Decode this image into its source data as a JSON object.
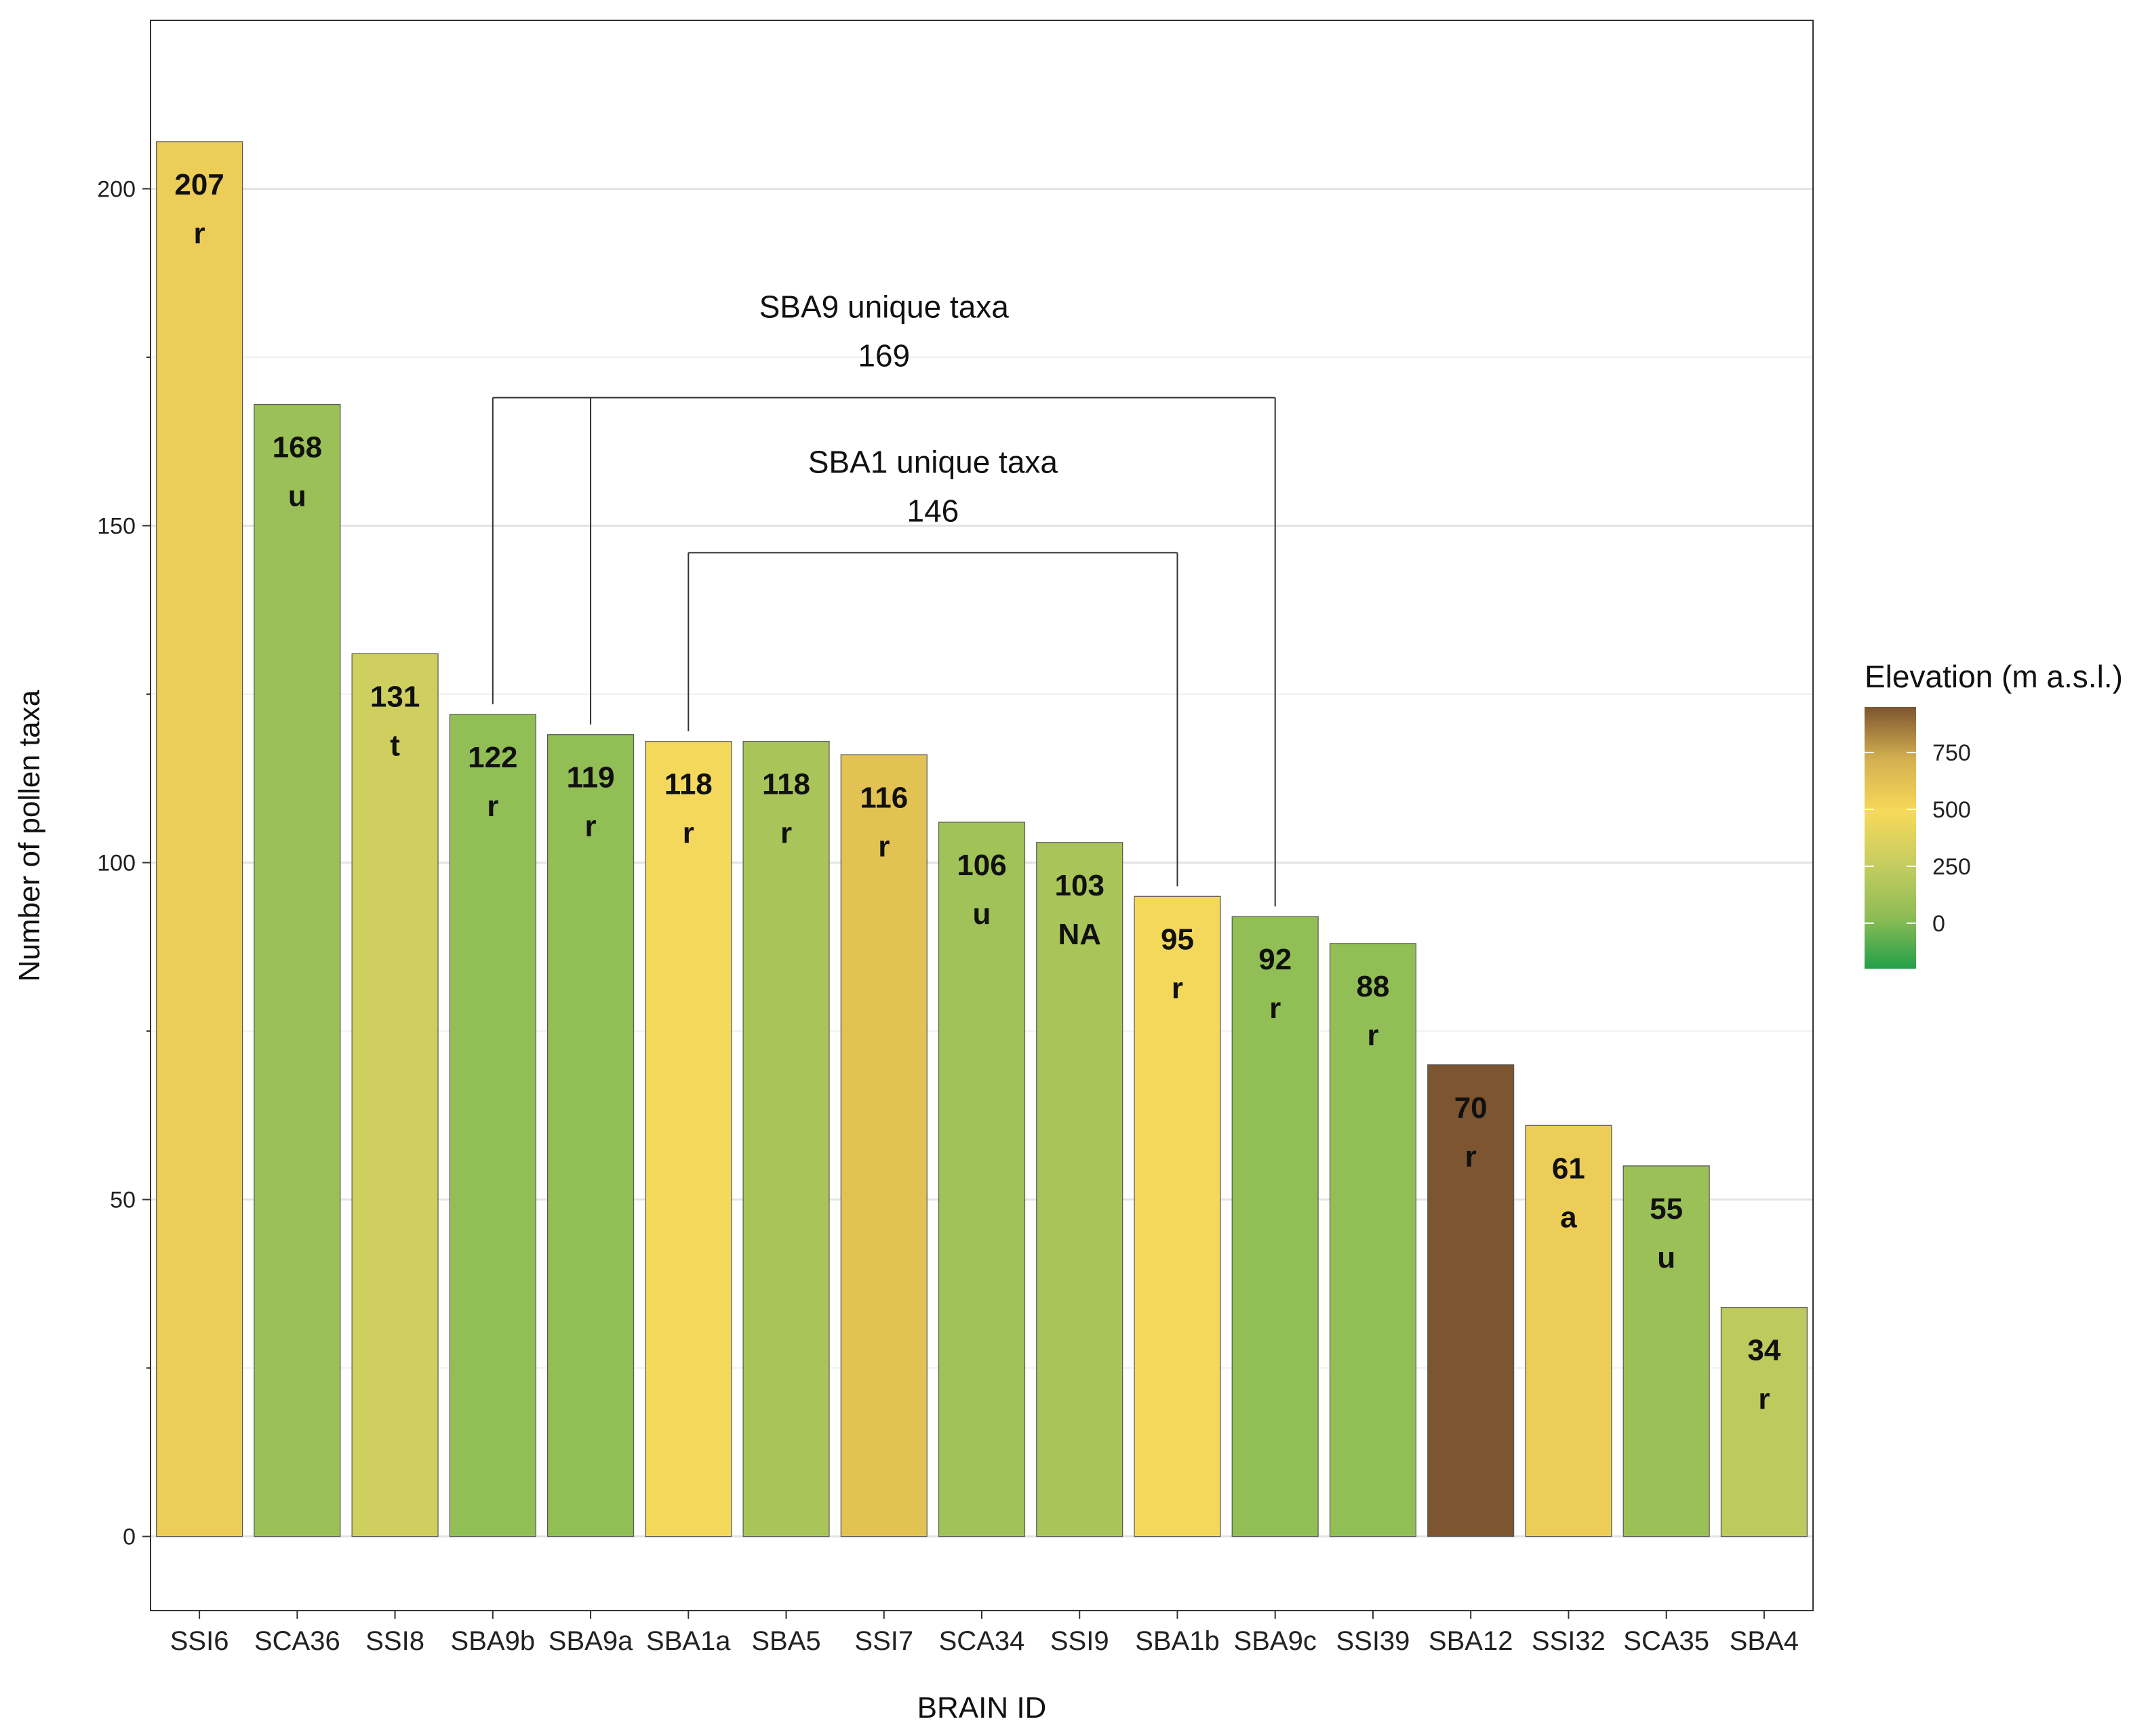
{
  "chart_data": {
    "type": "bar",
    "xlabel": "BRAIN ID",
    "ylabel": "Number of pollen taxa",
    "ylim": [
      -11,
      225
    ],
    "yticks": [
      0,
      50,
      100,
      150,
      200
    ],
    "categories": [
      "SSI6",
      "SCA36",
      "SSI8",
      "SBA9b",
      "SBA9a",
      "SBA1a",
      "SBA5",
      "SSI7",
      "SCA34",
      "SSI9",
      "SBA1b",
      "SBA9c",
      "SSI39",
      "SBA12",
      "SSI32",
      "SCA35",
      "SBA4"
    ],
    "values": [
      207,
      168,
      131,
      122,
      119,
      118,
      118,
      116,
      106,
      103,
      95,
      92,
      88,
      70,
      61,
      55,
      34
    ],
    "codes": [
      "r",
      "u",
      "t",
      "r",
      "r",
      "r",
      "r",
      "r",
      "u",
      "NA",
      "r",
      "r",
      "r",
      "r",
      "a",
      "u",
      "r"
    ],
    "elevation_m": [
      560,
      80,
      300,
      40,
      40,
      470,
      140,
      620,
      100,
      140,
      470,
      40,
      40,
      950,
      560,
      80,
      220
    ],
    "legend": {
      "title": "Elevation (m a.s.l.)",
      "ticks": [
        0,
        250,
        500,
        750
      ],
      "range": [
        -200,
        950
      ],
      "colors": [
        "#22a04a",
        "#8fbd55",
        "#c6cd60",
        "#f7d95a",
        "#d4b050",
        "#7d5530"
      ]
    },
    "brackets": [
      {
        "label": "SBA9 unique taxa",
        "count": "169",
        "members": [
          "SBA9b",
          "SBA9a",
          "SBA9c"
        ],
        "level": 169
      },
      {
        "label": "SBA1 unique taxa",
        "count": "146",
        "members": [
          "SBA1a",
          "SBA1b"
        ],
        "level": 146
      }
    ]
  }
}
